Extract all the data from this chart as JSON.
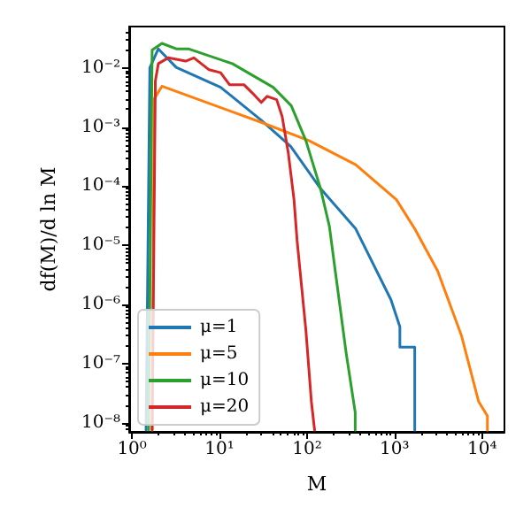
{
  "chart_data": {
    "type": "line",
    "xlabel": "M",
    "ylabel": "df(M)/d ln M",
    "log": "xy",
    "grid": false,
    "legend": "bottom left",
    "marker": "none",
    "line_style": "solid",
    "xlim": [
      0.93,
      18000
    ],
    "ylim": [
      7e-09,
      0.05
    ],
    "xticks": [
      {
        "value": 1,
        "label": "10⁰"
      },
      {
        "value": 10,
        "label": "10¹"
      },
      {
        "value": 100,
        "label": "10²"
      },
      {
        "value": 1000,
        "label": "10³"
      },
      {
        "value": 10000,
        "label": "10⁴"
      }
    ],
    "yticks": [
      {
        "value": 1e-08,
        "label": "10⁻⁸"
      },
      {
        "value": 1e-07,
        "label": "10⁻⁷"
      },
      {
        "value": 1e-06,
        "label": "10⁻⁶"
      },
      {
        "value": 1e-05,
        "label": "10⁻⁵"
      },
      {
        "value": 0.0001,
        "label": "10⁻⁴"
      },
      {
        "value": 0.001,
        "label": "10⁻³"
      },
      {
        "value": 0.01,
        "label": "10⁻²"
      }
    ],
    "series": [
      {
        "name": "μ=1",
        "color": "#1f77b4",
        "x": [
          1.45,
          1.6,
          2.0,
          3.2,
          10.3,
          30,
          65,
          141,
          360,
          910,
          1150,
          1150,
          1700,
          1700
        ],
        "values": [
          7.5e-09,
          0.01,
          0.021,
          0.0102,
          0.0047,
          0.0013,
          0.00047,
          9.3e-05,
          1.9e-05,
          1.2e-06,
          4.2e-07,
          1.9e-07,
          1.9e-07,
          7.5e-09
        ]
      },
      {
        "name": "μ=5",
        "color": "#ff7f0e",
        "x": [
          1.7,
          1.8,
          2.2,
          4.1,
          30,
          105,
          360,
          1050,
          1700,
          3100,
          5800,
          9100,
          11500,
          11500
        ],
        "values": [
          7.5e-09,
          0.003,
          0.0049,
          0.0035,
          0.0012,
          0.00059,
          0.00023,
          5.9e-05,
          1.9e-05,
          3.7e-06,
          3e-07,
          2.3e-08,
          1.3e-08,
          7.5e-09
        ]
      },
      {
        "name": "μ=10",
        "color": "#2ca02c",
        "x": [
          1.55,
          1.7,
          2.2,
          3.2,
          4.4,
          14,
          41,
          66,
          97,
          142,
          180,
          210,
          280,
          355,
          355
        ],
        "values": [
          7.5e-09,
          0.02,
          0.026,
          0.021,
          0.021,
          0.0118,
          0.0047,
          0.0023,
          0.00059,
          9.3e-05,
          2.1e-05,
          3.7e-06,
          1.5e-07,
          1.5e-08,
          7.5e-09
        ]
      },
      {
        "name": "μ=20",
        "color": "#d62728",
        "x": [
          1.7,
          1.85,
          2.0,
          2.6,
          4.1,
          5.1,
          7.6,
          10.3,
          13,
          19,
          24,
          30,
          35,
          45,
          52,
          61,
          71,
          77,
          97,
          112,
          122
        ],
        "values": [
          7.5e-09,
          0.006,
          0.0118,
          0.0148,
          0.013,
          0.0148,
          0.0093,
          0.0083,
          0.0052,
          0.0052,
          0.0037,
          0.0026,
          0.0033,
          0.0029,
          0.0015,
          0.00037,
          5.9e-05,
          1.2e-05,
          3.7e-07,
          2.3e-08,
          7.5e-09
        ]
      }
    ]
  }
}
